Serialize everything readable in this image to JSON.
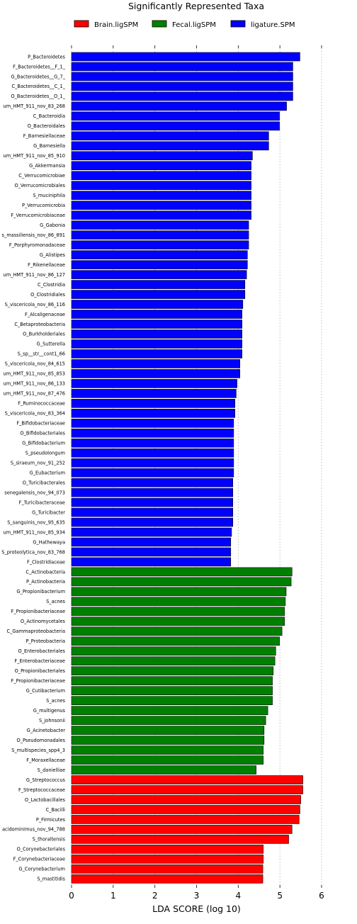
{
  "chart_data": {
    "type": "bar",
    "orientation": "horizontal",
    "title": "Significantly Represented Taxa",
    "xlabel": "LDA SCORE (log 10)",
    "ylabel": "",
    "xlim": [
      0,
      6
    ],
    "xticks": [
      "0",
      "1",
      "2",
      "3",
      "4",
      "5",
      "6"
    ],
    "grid": "vertical dotted",
    "legend_position": "top",
    "legend": [
      {
        "name": "Brain.ligSPM",
        "color": "#ff0000"
      },
      {
        "name": "Fecal.ligSPM",
        "color": "#008000"
      },
      {
        "name": "ligature.SPM",
        "color": "#0000ff"
      }
    ],
    "bars": [
      {
        "label": "P_Bacteroidetes",
        "value": 5.48,
        "group": "ligature.SPM"
      },
      {
        "label": "F_Bacteroidetes__F_1_",
        "value": 5.31,
        "group": "ligature.SPM"
      },
      {
        "label": "G_Bacteroidetes__G_7_",
        "value": 5.31,
        "group": "ligature.SPM"
      },
      {
        "label": "C_Bacteroidetes__C_1_",
        "value": 5.31,
        "group": "ligature.SPM"
      },
      {
        "label": "O_Bacteroidetes__O_1_",
        "value": 5.31,
        "group": "ligature.SPM"
      },
      {
        "label": "um_HMT_911_nov_83_268",
        "value": 5.16,
        "group": "ligature.SPM"
      },
      {
        "label": "C_Bacteroidia",
        "value": 4.99,
        "group": "ligature.SPM"
      },
      {
        "label": "O_Bacteroidales",
        "value": 4.99,
        "group": "ligature.SPM"
      },
      {
        "label": "F_Barnesiellaceae",
        "value": 4.73,
        "group": "ligature.SPM"
      },
      {
        "label": "G_Barnesiella",
        "value": 4.73,
        "group": "ligature.SPM"
      },
      {
        "label": "um_HMT_911_nov_85_910",
        "value": 4.34,
        "group": "ligature.SPM"
      },
      {
        "label": "G_Akkermansia",
        "value": 4.31,
        "group": "ligature.SPM"
      },
      {
        "label": "C_Verrucomicrobiae",
        "value": 4.31,
        "group": "ligature.SPM"
      },
      {
        "label": "O_Verrucomicrobiales",
        "value": 4.31,
        "group": "ligature.SPM"
      },
      {
        "label": "S_muciniphila",
        "value": 4.31,
        "group": "ligature.SPM"
      },
      {
        "label": "P_Verrucomicrobia",
        "value": 4.31,
        "group": "ligature.SPM"
      },
      {
        "label": "F_Verrucomicrobiaceae",
        "value": 4.31,
        "group": "ligature.SPM"
      },
      {
        "label": "G_Gabonia",
        "value": 4.25,
        "group": "ligature.SPM"
      },
      {
        "label": "s_massiliensis_nov_86_891",
        "value": 4.25,
        "group": "ligature.SPM"
      },
      {
        "label": "F_Porphyromonadaceae",
        "value": 4.25,
        "group": "ligature.SPM"
      },
      {
        "label": "G_Alistipes",
        "value": 4.22,
        "group": "ligature.SPM"
      },
      {
        "label": "F_Rikenellaceae",
        "value": 4.22,
        "group": "ligature.SPM"
      },
      {
        "label": "um_HMT_911_nov_86_127",
        "value": 4.2,
        "group": "ligature.SPM"
      },
      {
        "label": "C_Clostridia",
        "value": 4.16,
        "group": "ligature.SPM"
      },
      {
        "label": "O_Clostridiales",
        "value": 4.16,
        "group": "ligature.SPM"
      },
      {
        "label": "S_viscericola_nov_86_116",
        "value": 4.11,
        "group": "ligature.SPM"
      },
      {
        "label": "F_Alcaligenaceae",
        "value": 4.09,
        "group": "ligature.SPM"
      },
      {
        "label": "C_Betaproteobacteria",
        "value": 4.09,
        "group": "ligature.SPM"
      },
      {
        "label": "O_Burkholderiales",
        "value": 4.09,
        "group": "ligature.SPM"
      },
      {
        "label": "G_Sutterella",
        "value": 4.09,
        "group": "ligature.SPM"
      },
      {
        "label": "S_sp__str__cont1_66",
        "value": 4.09,
        "group": "ligature.SPM"
      },
      {
        "label": "S_viscericola_nov_84_615",
        "value": 4.04,
        "group": "ligature.SPM"
      },
      {
        "label": "um_HMT_911_nov_85_853",
        "value": 4.04,
        "group": "ligature.SPM"
      },
      {
        "label": "um_HMT_911_nov_86_133",
        "value": 3.97,
        "group": "ligature.SPM"
      },
      {
        "label": "um_HMT_911_nov_87_476",
        "value": 3.95,
        "group": "ligature.SPM"
      },
      {
        "label": "F_Ruminococcaceae",
        "value": 3.92,
        "group": "ligature.SPM"
      },
      {
        "label": "S_viscericola_nov_83_364",
        "value": 3.92,
        "group": "ligature.SPM"
      },
      {
        "label": "F_Bifidobacteriaceae",
        "value": 3.89,
        "group": "ligature.SPM"
      },
      {
        "label": "O_Bifidobacteriales",
        "value": 3.89,
        "group": "ligature.SPM"
      },
      {
        "label": "G_Bifidobacterium",
        "value": 3.89,
        "group": "ligature.SPM"
      },
      {
        "label": "S_pseudolongum",
        "value": 3.89,
        "group": "ligature.SPM"
      },
      {
        "label": "S_siraeum_nov_91_252",
        "value": 3.89,
        "group": "ligature.SPM"
      },
      {
        "label": "G_Eubacterium",
        "value": 3.89,
        "group": "ligature.SPM"
      },
      {
        "label": "O_Turicibacterales",
        "value": 3.87,
        "group": "ligature.SPM"
      },
      {
        "label": "senegalensis_nov_94_073",
        "value": 3.87,
        "group": "ligature.SPM"
      },
      {
        "label": "F_Turicibacteraceae",
        "value": 3.87,
        "group": "ligature.SPM"
      },
      {
        "label": "G_Turicibacter",
        "value": 3.87,
        "group": "ligature.SPM"
      },
      {
        "label": "S_sanguinis_nov_95_635",
        "value": 3.87,
        "group": "ligature.SPM"
      },
      {
        "label": "um_HMT_911_nov_85_934",
        "value": 3.84,
        "group": "ligature.SPM"
      },
      {
        "label": "G_Hathewaya",
        "value": 3.82,
        "group": "ligature.SPM"
      },
      {
        "label": "S_proteolytica_nov_83_768",
        "value": 3.82,
        "group": "ligature.SPM"
      },
      {
        "label": "F_Clostridiaceae",
        "value": 3.82,
        "group": "ligature.SPM"
      },
      {
        "label": "C_Actinobacteria",
        "value": 5.29,
        "group": "Fecal.ligSPM"
      },
      {
        "label": "P_Actinobacteria",
        "value": 5.27,
        "group": "Fecal.ligSPM"
      },
      {
        "label": "G_Propionibacterium",
        "value": 5.15,
        "group": "Fecal.ligSPM"
      },
      {
        "label": "S_acnes",
        "value": 5.13,
        "group": "Fecal.ligSPM"
      },
      {
        "label": "F_Propionibacteriaceae",
        "value": 5.11,
        "group": "Fecal.ligSPM"
      },
      {
        "label": "O_Actinomycetales",
        "value": 5.11,
        "group": "Fecal.ligSPM"
      },
      {
        "label": "C_Gammaproteobacteria",
        "value": 5.05,
        "group": "Fecal.ligSPM"
      },
      {
        "label": "P_Proteobacteria",
        "value": 4.99,
        "group": "Fecal.ligSPM"
      },
      {
        "label": "O_Enterobacteriales",
        "value": 4.9,
        "group": "Fecal.ligSPM"
      },
      {
        "label": "F_Enterobacteriaceae",
        "value": 4.88,
        "group": "Fecal.ligSPM"
      },
      {
        "label": "O_Propionibacteriales",
        "value": 4.84,
        "group": "Fecal.ligSPM"
      },
      {
        "label": "F_Propionibacteriaceae",
        "value": 4.82,
        "group": "Fecal.ligSPM"
      },
      {
        "label": "G_Cutibacterium",
        "value": 4.82,
        "group": "Fecal.ligSPM"
      },
      {
        "label": "S_acnes",
        "value": 4.82,
        "group": "Fecal.ligSPM"
      },
      {
        "label": "G_multigenus",
        "value": 4.71,
        "group": "Fecal.ligSPM"
      },
      {
        "label": "S_johnsonii",
        "value": 4.66,
        "group": "Fecal.ligSPM"
      },
      {
        "label": "G_Acinetobacter",
        "value": 4.62,
        "group": "Fecal.ligSPM"
      },
      {
        "label": "O_Pseudomonadales",
        "value": 4.62,
        "group": "Fecal.ligSPM"
      },
      {
        "label": "S_multispecies_spp4_3",
        "value": 4.6,
        "group": "Fecal.ligSPM"
      },
      {
        "label": "F_Moraxellaceae",
        "value": 4.6,
        "group": "Fecal.ligSPM"
      },
      {
        "label": "S_danielliae",
        "value": 4.43,
        "group": "Fecal.ligSPM"
      },
      {
        "label": "G_Streptococcus",
        "value": 5.55,
        "group": "Brain.ligSPM"
      },
      {
        "label": "F_Streptococcaceae",
        "value": 5.55,
        "group": "Brain.ligSPM"
      },
      {
        "label": "O_Lactobacillales",
        "value": 5.5,
        "group": "Brain.ligSPM"
      },
      {
        "label": "C_Bacilli",
        "value": 5.48,
        "group": "Brain.ligSPM"
      },
      {
        "label": "P_Firmicutes",
        "value": 5.46,
        "group": "Brain.ligSPM"
      },
      {
        "label": "acidominimus_nov_94_788",
        "value": 5.29,
        "group": "Brain.ligSPM"
      },
      {
        "label": "S_thoraltensis",
        "value": 5.21,
        "group": "Brain.ligSPM"
      },
      {
        "label": "O_Corynebacteriales",
        "value": 4.6,
        "group": "Brain.ligSPM"
      },
      {
        "label": "F_Corynebacteriaceae",
        "value": 4.6,
        "group": "Brain.ligSPM"
      },
      {
        "label": "G_Corynebacterium",
        "value": 4.59,
        "group": "Brain.ligSPM"
      },
      {
        "label": "S_mastitidis",
        "value": 4.59,
        "group": "Brain.ligSPM"
      }
    ]
  }
}
